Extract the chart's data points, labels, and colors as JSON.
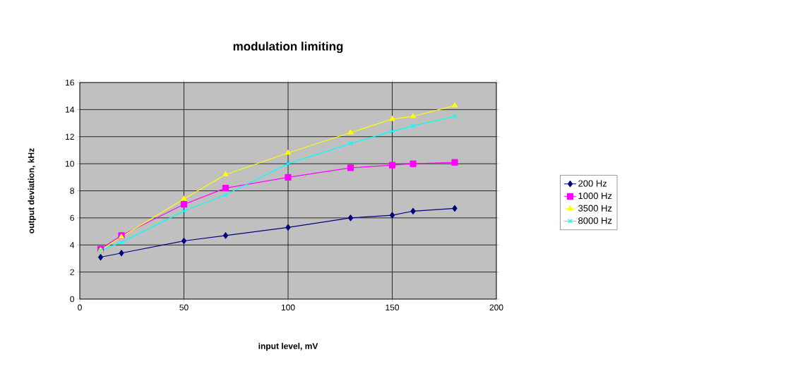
{
  "chart_data": {
    "type": "line",
    "title": "modulation limiting",
    "xlabel": "input level, mV",
    "ylabel": "output deviation, kHz",
    "x": [
      10,
      20,
      50,
      70,
      100,
      130,
      150,
      160,
      180
    ],
    "series": [
      {
        "name": "200 Hz",
        "color": "#000080",
        "marker": "diamond",
        "values": [
          3.1,
          3.4,
          4.3,
          4.7,
          5.3,
          6.0,
          6.2,
          6.5,
          6.7
        ]
      },
      {
        "name": "1000 Hz",
        "color": "#ff00ff",
        "marker": "square",
        "values": [
          3.7,
          4.7,
          7.0,
          8.2,
          9.0,
          9.7,
          9.9,
          10.0,
          10.1
        ]
      },
      {
        "name": "3500 Hz",
        "color": "#ffff00",
        "marker": "triangle",
        "values": [
          3.6,
          4.6,
          7.4,
          9.2,
          10.8,
          12.3,
          13.3,
          13.5,
          14.3
        ]
      },
      {
        "name": "8000 Hz",
        "color": "#00ffff",
        "marker": "cross",
        "values": [
          3.6,
          4.2,
          6.5,
          7.7,
          10.0,
          11.5,
          12.4,
          12.8,
          13.5
        ]
      }
    ],
    "xlim": [
      0,
      200
    ],
    "xticks": [
      0,
      50,
      100,
      150,
      200
    ],
    "ylim": [
      0,
      16
    ],
    "yticks": [
      0,
      2,
      4,
      6,
      8,
      10,
      12,
      14,
      16
    ],
    "grid": true,
    "legend": "right"
  }
}
